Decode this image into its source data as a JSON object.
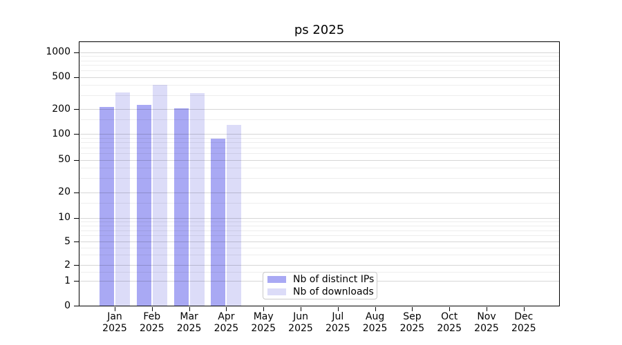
{
  "chart_data": {
    "type": "bar",
    "title": "ps 2025",
    "categories": [
      "Jan",
      "Feb",
      "Mar",
      "Apr",
      "May",
      "Jun",
      "Jul",
      "Aug",
      "Sep",
      "Oct",
      "Nov",
      "Dec"
    ],
    "category_year": "2025",
    "series": [
      {
        "name": "Nb of distinct IPs",
        "color": "#a9a9f4",
        "values": [
          214,
          227,
          203,
          89,
          null,
          null,
          null,
          null,
          null,
          null,
          null,
          null
        ]
      },
      {
        "name": "Nb of downloads",
        "color": "#dcdcf8",
        "values": [
          323,
          403,
          317,
          130,
          null,
          null,
          null,
          null,
          null,
          null,
          null,
          null
        ]
      }
    ],
    "xlabel": "",
    "ylabel": "",
    "yscale": "symlog",
    "ylim": [
      0,
      1350
    ],
    "yticks": [
      0,
      1,
      2,
      5,
      10,
      20,
      50,
      100,
      200,
      500,
      1000
    ],
    "grid": true,
    "legend_position": "lower center"
  },
  "legend": {
    "items": [
      {
        "label": "Nb of distinct IPs",
        "color": "#a9a9f4"
      },
      {
        "label": "Nb of downloads",
        "color": "#dcdcf8"
      }
    ]
  },
  "colors": {
    "grid_major": "rgba(0,0,0,0.16)",
    "grid_minor": "rgba(0,0,0,0.07)",
    "spine": "#000000",
    "text": "#000000",
    "background": "#ffffff"
  }
}
